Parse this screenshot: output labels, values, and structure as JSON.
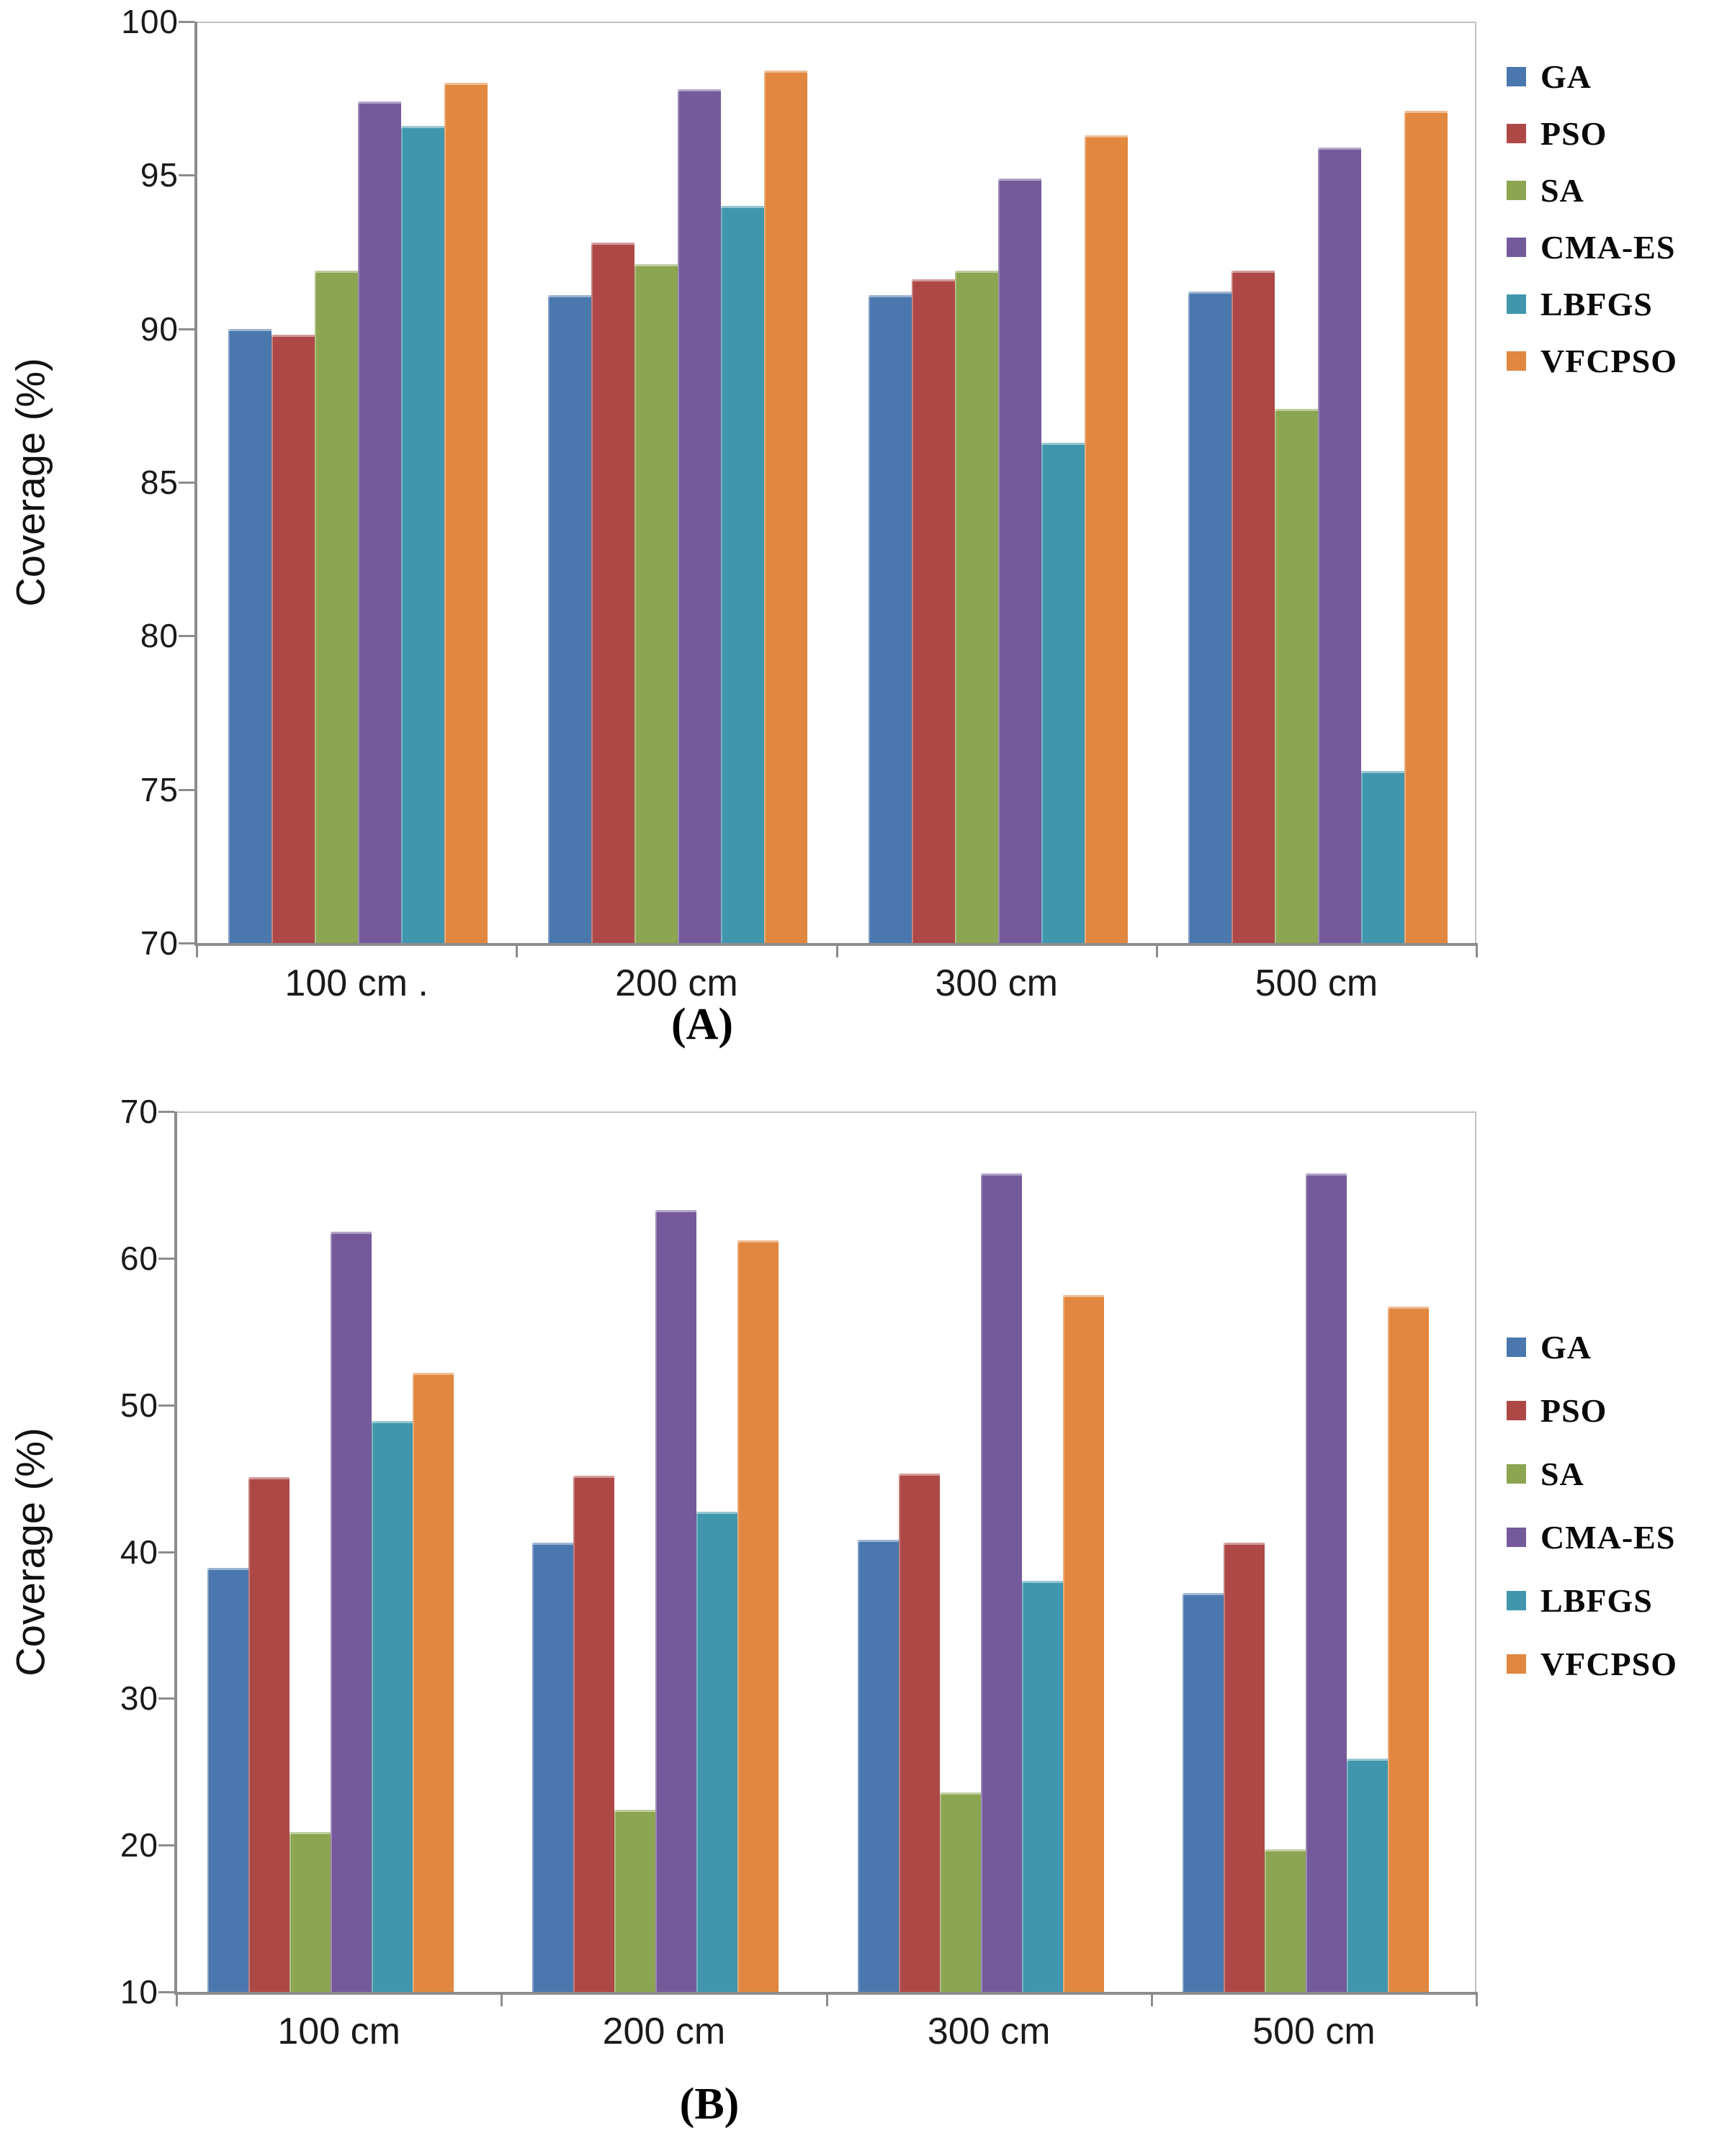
{
  "figure_title": "",
  "chart_data": [
    {
      "type": "bar",
      "panel": "A",
      "caption": "(A)",
      "ylabel": "Coverage (%)",
      "xlabel": "",
      "ylim": [
        70,
        100
      ],
      "yticks": [
        70,
        75,
        80,
        85,
        90,
        95,
        100
      ],
      "grid": false,
      "legend_position": "right",
      "categories": [
        "100 cm",
        "200 cm",
        "300 cm",
        "500 cm"
      ],
      "stray_dot": ".",
      "series": [
        {
          "name": "GA",
          "color": "#4a77ae",
          "values": [
            90.0,
            91.1,
            91.1,
            91.2
          ]
        },
        {
          "name": "PSO",
          "color": "#ae4846",
          "values": [
            89.8,
            92.8,
            91.6,
            91.9
          ]
        },
        {
          "name": "SA",
          "color": "#8ba551",
          "values": [
            91.9,
            92.1,
            91.9,
            87.4
          ]
        },
        {
          "name": "CMA-ES",
          "color": "#745a9b",
          "values": [
            97.4,
            97.8,
            94.9,
            95.9
          ]
        },
        {
          "name": "LBFGS",
          "color": "#4097ad",
          "values": [
            96.6,
            94.0,
            86.3,
            75.6
          ]
        },
        {
          "name": "VFCPSO",
          "color": "#e1873f",
          "values": [
            98.0,
            98.4,
            96.3,
            97.1
          ]
        }
      ]
    },
    {
      "type": "bar",
      "panel": "B",
      "caption": "(B)",
      "ylabel": "Coverage (%)",
      "xlabel": "",
      "ylim": [
        10,
        70
      ],
      "yticks": [
        10,
        20,
        30,
        40,
        50,
        60,
        70
      ],
      "grid": false,
      "legend_position": "right",
      "categories": [
        "100 cm",
        "200 cm",
        "300 cm",
        "500 cm"
      ],
      "stray_dot": "",
      "series": [
        {
          "name": "GA",
          "color": "#4a77ae",
          "values": [
            38.9,
            40.6,
            40.8,
            37.2
          ]
        },
        {
          "name": "PSO",
          "color": "#ae4846",
          "values": [
            45.1,
            45.2,
            45.3,
            40.6
          ]
        },
        {
          "name": "SA",
          "color": "#8ba551",
          "values": [
            20.9,
            22.4,
            23.6,
            19.7
          ]
        },
        {
          "name": "CMA-ES",
          "color": "#745a9b",
          "values": [
            61.8,
            63.3,
            65.8,
            65.8
          ]
        },
        {
          "name": "LBFGS",
          "color": "#4097ad",
          "values": [
            48.9,
            42.7,
            38.0,
            25.9
          ]
        },
        {
          "name": "VFCPSO",
          "color": "#e1873f",
          "values": [
            52.2,
            61.2,
            57.5,
            56.7
          ]
        }
      ]
    }
  ]
}
